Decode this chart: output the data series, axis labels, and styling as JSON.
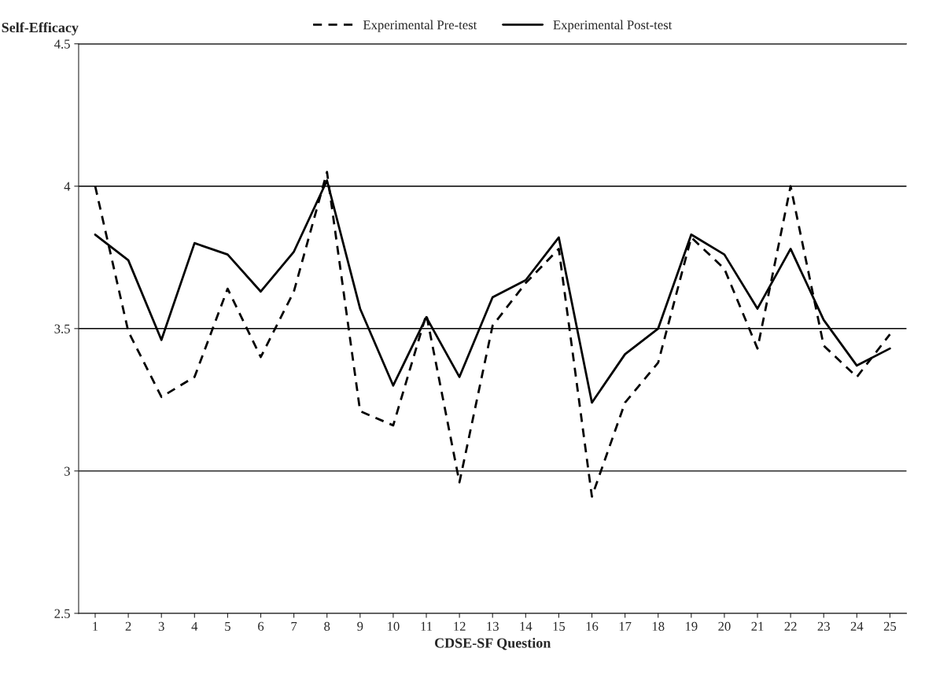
{
  "chart_data": {
    "type": "line",
    "xlabel": "CDSE-SF Question",
    "ylabel": "Self-Efficacy",
    "categories": [
      "1",
      "2",
      "3",
      "4",
      "5",
      "6",
      "7",
      "8",
      "9",
      "10",
      "11",
      "12",
      "13",
      "14",
      "15",
      "16",
      "17",
      "18",
      "19",
      "20",
      "21",
      "22",
      "23",
      "24",
      "25"
    ],
    "series": [
      {
        "name": "Experimental Pre-test",
        "color": "#000000",
        "line_style": "dashed",
        "values": [
          4.0,
          3.49,
          3.26,
          3.33,
          3.64,
          3.4,
          3.63,
          4.05,
          3.21,
          3.16,
          3.55,
          2.96,
          3.51,
          3.66,
          3.78,
          2.91,
          3.24,
          3.38,
          3.82,
          3.71,
          3.43,
          4.0,
          3.44,
          3.33,
          3.48
        ]
      },
      {
        "name": "Experimental Post-test",
        "color": "#000000",
        "line_style": "solid",
        "values": [
          3.83,
          3.74,
          3.46,
          3.8,
          3.76,
          3.63,
          3.77,
          4.02,
          3.57,
          3.3,
          3.54,
          3.33,
          3.61,
          3.67,
          3.82,
          3.24,
          3.41,
          3.5,
          3.83,
          3.76,
          3.57,
          3.78,
          3.53,
          3.37,
          3.43
        ]
      }
    ],
    "ylim": [
      2.5,
      4.5
    ],
    "yticks": [
      2.5,
      3,
      3.5,
      4,
      4.5
    ],
    "grid": "y",
    "legend": "top",
    "marker": "none"
  }
}
